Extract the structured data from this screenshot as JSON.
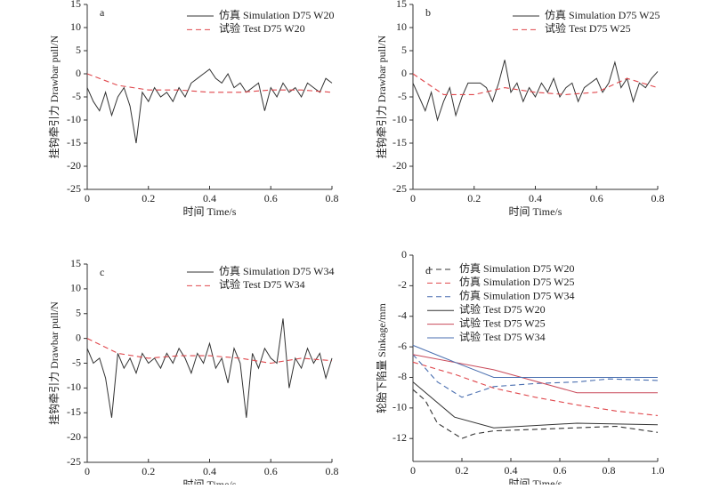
{
  "chart_data": [
    {
      "type": "line",
      "panel": "a",
      "xlabel": "时间 Time/s",
      "ylabel": "挂钩牵引力 Drawbar pull/N",
      "xlim": [
        0,
        0.8
      ],
      "xticks": [
        0,
        0.2,
        0.4,
        0.6,
        0.8
      ],
      "ylim": [
        -25,
        15
      ],
      "yticks": [
        15,
        10,
        5,
        0,
        -5,
        -10,
        -15,
        -20,
        -25
      ],
      "series": [
        {
          "name": "仿真 Simulation D75 W20",
          "color": "#333333",
          "dash": false,
          "x": [
            0,
            0.02,
            0.04,
            0.06,
            0.08,
            0.1,
            0.12,
            0.14,
            0.16,
            0.18,
            0.2,
            0.22,
            0.24,
            0.26,
            0.28,
            0.3,
            0.32,
            0.34,
            0.36,
            0.38,
            0.4,
            0.42,
            0.44,
            0.46,
            0.48,
            0.5,
            0.52,
            0.54,
            0.56,
            0.58,
            0.6,
            0.62,
            0.64,
            0.66,
            0.68,
            0.7,
            0.72,
            0.74,
            0.76,
            0.78,
            0.8
          ],
          "values": [
            -3,
            -6,
            -8,
            -4,
            -9,
            -5,
            -3,
            -7,
            -15,
            -4,
            -6,
            -3,
            -5,
            -4,
            -6,
            -3,
            -5,
            -2,
            -1,
            0,
            1,
            -1,
            -2,
            0,
            -3,
            -2,
            -4,
            -3,
            -2,
            -8,
            -3,
            -5,
            -2,
            -4,
            -3,
            -5,
            -2,
            -3,
            -4,
            -1,
            -2
          ]
        },
        {
          "name": "试验 Test D75 W20",
          "color": "#e0474c",
          "dash": true,
          "x": [
            0,
            0.1,
            0.2,
            0.3,
            0.4,
            0.5,
            0.6,
            0.7,
            0.8
          ],
          "values": [
            0,
            -2.5,
            -3.5,
            -3.5,
            -4,
            -4,
            -3.5,
            -3.5,
            -4
          ]
        }
      ]
    },
    {
      "type": "line",
      "panel": "b",
      "xlabel": "时间 Time/s",
      "ylabel": "挂钩牵引力 Drawbar pull/N",
      "xlim": [
        0,
        0.8
      ],
      "xticks": [
        0,
        0.2,
        0.4,
        0.6,
        0.8
      ],
      "ylim": [
        -25,
        15
      ],
      "yticks": [
        15,
        10,
        5,
        0,
        -5,
        -10,
        -15,
        -20,
        -25
      ],
      "series": [
        {
          "name": "仿真 Simulation D75 W25",
          "color": "#333333",
          "dash": false,
          "x": [
            0,
            0.02,
            0.04,
            0.06,
            0.08,
            0.1,
            0.12,
            0.14,
            0.16,
            0.18,
            0.2,
            0.22,
            0.24,
            0.26,
            0.28,
            0.3,
            0.32,
            0.34,
            0.36,
            0.38,
            0.4,
            0.42,
            0.44,
            0.46,
            0.48,
            0.5,
            0.52,
            0.54,
            0.56,
            0.58,
            0.6,
            0.62,
            0.64,
            0.66,
            0.68,
            0.7,
            0.72,
            0.74,
            0.76,
            0.78,
            0.8
          ],
          "values": [
            -2,
            -5,
            -8,
            -4,
            -10,
            -6,
            -3,
            -9,
            -5,
            -2,
            -2,
            -2,
            -3,
            -6,
            -2,
            3,
            -4,
            -2,
            -6,
            -3,
            -5,
            -2,
            -4,
            -1,
            -5,
            -3,
            -2,
            -6,
            -3,
            -2,
            -1,
            -4,
            -2,
            2.5,
            -3,
            -1,
            -6,
            -2,
            -3,
            -1,
            0.5
          ]
        },
        {
          "name": "试验 Test D75 W25",
          "color": "#e0474c",
          "dash": true,
          "x": [
            0,
            0.1,
            0.2,
            0.3,
            0.4,
            0.5,
            0.6,
            0.7,
            0.8
          ],
          "values": [
            0,
            -4.5,
            -4.5,
            -3,
            -4,
            -4.5,
            -4,
            -1,
            -3
          ]
        }
      ]
    },
    {
      "type": "line",
      "panel": "c",
      "xlabel": "时间 Time/s",
      "ylabel": "挂钩牵引力 Drawbar pull/N",
      "xlim": [
        0,
        0.8
      ],
      "xticks": [
        0,
        0.2,
        0.4,
        0.6,
        0.8
      ],
      "ylim": [
        -25,
        15
      ],
      "yticks": [
        15,
        10,
        5,
        0,
        -5,
        -10,
        -15,
        -20,
        -25
      ],
      "series": [
        {
          "name": "仿真 Simulation D75 W34",
          "color": "#333333",
          "dash": false,
          "x": [
            0,
            0.02,
            0.04,
            0.06,
            0.08,
            0.1,
            0.12,
            0.14,
            0.16,
            0.18,
            0.2,
            0.22,
            0.24,
            0.26,
            0.28,
            0.3,
            0.32,
            0.34,
            0.36,
            0.38,
            0.4,
            0.42,
            0.44,
            0.46,
            0.48,
            0.5,
            0.52,
            0.54,
            0.56,
            0.58,
            0.6,
            0.62,
            0.64,
            0.66,
            0.68,
            0.7,
            0.72,
            0.74,
            0.76,
            0.78,
            0.8
          ],
          "values": [
            -2,
            -5,
            -4,
            -8,
            -16,
            -3,
            -6,
            -4,
            -7,
            -3,
            -5,
            -4,
            -6,
            -3,
            -5,
            -2,
            -4,
            -7,
            -3,
            -5,
            -1,
            -6,
            -4,
            -9,
            -2,
            -5,
            -16,
            -3,
            -6,
            -2,
            -4,
            -5,
            4,
            -10,
            -4,
            -6,
            -2,
            -5,
            -3,
            -8,
            -4
          ]
        },
        {
          "name": "试验 Test D75 W34",
          "color": "#e0474c",
          "dash": true,
          "x": [
            0,
            0.1,
            0.2,
            0.3,
            0.4,
            0.5,
            0.6,
            0.7,
            0.8
          ],
          "values": [
            0,
            -3,
            -4,
            -3.5,
            -3.5,
            -4,
            -5,
            -4,
            -4.5
          ]
        }
      ]
    },
    {
      "type": "line",
      "panel": "d",
      "xlabel": "时间 Time/s",
      "ylabel": "轮胎下陷量 Sinkage/mm",
      "xlim": [
        0,
        1
      ],
      "xticks": [
        0,
        0.2,
        0.4,
        0.6,
        0.8,
        {
          "value": 1,
          "label": "1.0"
        }
      ],
      "ylim": [
        -13.5,
        0
      ],
      "yticks": [
        0,
        -2,
        -4,
        -6,
        -8,
        -10,
        -12
      ],
      "series": [
        {
          "name": "仿真 Simulation D75 W20",
          "color": "#333333",
          "dash": true,
          "x": [
            0,
            0.05,
            0.1,
            0.2,
            0.25,
            0.33,
            0.5,
            0.67,
            0.83,
            1
          ],
          "values": [
            -8.8,
            -9.5,
            -11,
            -12,
            -11.7,
            -11.5,
            -11.4,
            -11.3,
            -11.2,
            -11.6
          ]
        },
        {
          "name": "仿真 Simulation D75 W25",
          "color": "#e0474c",
          "dash": true,
          "x": [
            0,
            0.17,
            0.33,
            0.5,
            0.67,
            0.83,
            1
          ],
          "values": [
            -7,
            -7.8,
            -8.7,
            -9.3,
            -9.8,
            -10.2,
            -10.5
          ]
        },
        {
          "name": "仿真 Simulation D75 W34",
          "color": "#4a6fb0",
          "dash": true,
          "x": [
            0,
            0.1,
            0.2,
            0.33,
            0.5,
            0.67,
            0.8,
            1
          ],
          "values": [
            -6.5,
            -8.3,
            -9.3,
            -8.6,
            -8.4,
            -8.3,
            -8.1,
            -8.2
          ]
        },
        {
          "name": "试验 Test D75 W20",
          "color": "#333333",
          "dash": false,
          "x": [
            0,
            0.17,
            0.33,
            0.67,
            1
          ],
          "values": [
            -8.3,
            -10.6,
            -11.3,
            -11,
            -11.1
          ]
        },
        {
          "name": "试验 Test D75 W25",
          "color": "#c94a5a",
          "dash": false,
          "x": [
            0,
            0.33,
            0.67,
            1
          ],
          "values": [
            -6.5,
            -7.5,
            -9,
            -9
          ]
        },
        {
          "name": "试验 Test D75 W34",
          "color": "#4a6fb0",
          "dash": false,
          "x": [
            0,
            0.17,
            0.33,
            1
          ],
          "values": [
            -5.9,
            -7,
            -8,
            -8
          ]
        }
      ]
    }
  ]
}
